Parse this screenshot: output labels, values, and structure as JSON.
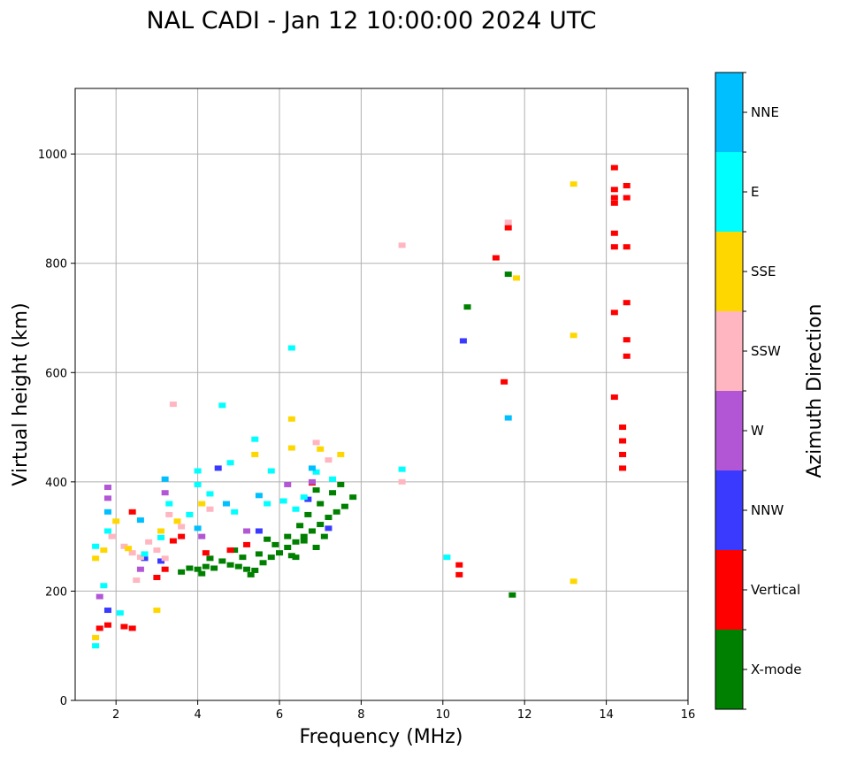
{
  "chart_data": {
    "type": "scatter",
    "title": "NAL CADI - Jan 12 10:00:00 2024 UTC",
    "xlabel": "Frequency (MHz)",
    "ylabel": "Virtual height (km)",
    "xlim": [
      1,
      16
    ],
    "ylim": [
      0,
      1120
    ],
    "xticks": [
      2,
      4,
      6,
      8,
      10,
      12,
      14,
      16
    ],
    "yticks": [
      0,
      200,
      400,
      600,
      800,
      1000
    ],
    "grid": true,
    "colorbar": {
      "label": "Azimuth Direction",
      "categories": [
        {
          "name": "X-mode",
          "color": "#008000"
        },
        {
          "name": "Vertical",
          "color": "#ff0000"
        },
        {
          "name": "NNW",
          "color": "#3a3aff"
        },
        {
          "name": "W",
          "color": "#b256d6"
        },
        {
          "name": "SSW",
          "color": "#ffb6c1"
        },
        {
          "name": "SSE",
          "color": "#ffd700"
        },
        {
          "name": "E",
          "color": "#00ffff"
        },
        {
          "name": "NNE",
          "color": "#00bfff"
        }
      ]
    },
    "series": [
      {
        "name": "X-mode",
        "points": [
          [
            3.6,
            235
          ],
          [
            3.8,
            242
          ],
          [
            4.0,
            240
          ],
          [
            4.2,
            245
          ],
          [
            4.4,
            242
          ],
          [
            4.6,
            255
          ],
          [
            4.8,
            248
          ],
          [
            5.0,
            245
          ],
          [
            5.2,
            240
          ],
          [
            5.4,
            238
          ],
          [
            5.6,
            252
          ],
          [
            5.8,
            262
          ],
          [
            6.0,
            270
          ],
          [
            6.2,
            280
          ],
          [
            6.4,
            290
          ],
          [
            6.6,
            300
          ],
          [
            6.8,
            310
          ],
          [
            7.0,
            322
          ],
          [
            7.2,
            335
          ],
          [
            7.4,
            345
          ],
          [
            7.6,
            355
          ],
          [
            7.8,
            372
          ],
          [
            6.9,
            280
          ],
          [
            7.1,
            300
          ],
          [
            6.5,
            320
          ],
          [
            6.7,
            340
          ],
          [
            6.3,
            265
          ],
          [
            5.9,
            285
          ],
          [
            5.5,
            268
          ],
          [
            5.1,
            262
          ],
          [
            4.9,
            275
          ],
          [
            4.3,
            260
          ],
          [
            6.4,
            262
          ],
          [
            7.0,
            360
          ],
          [
            7.3,
            380
          ],
          [
            7.5,
            395
          ],
          [
            6.9,
            385
          ],
          [
            6.6,
            292
          ],
          [
            6.2,
            300
          ],
          [
            5.7,
            295
          ],
          [
            4.1,
            232
          ],
          [
            5.3,
            230
          ],
          [
            10.6,
            720
          ],
          [
            11.6,
            780
          ],
          [
            11.7,
            193
          ]
        ]
      },
      {
        "name": "Vertical",
        "points": [
          [
            1.6,
            132
          ],
          [
            1.8,
            138
          ],
          [
            2.2,
            135
          ],
          [
            2.4,
            132
          ],
          [
            3.0,
            225
          ],
          [
            3.2,
            240
          ],
          [
            3.4,
            292
          ],
          [
            3.6,
            300
          ],
          [
            4.2,
            270
          ],
          [
            4.8,
            275
          ],
          [
            5.2,
            285
          ],
          [
            2.4,
            345
          ],
          [
            6.8,
            398
          ],
          [
            10.4,
            248
          ],
          [
            10.4,
            230
          ],
          [
            11.5,
            583
          ],
          [
            11.6,
            865
          ],
          [
            11.3,
            810
          ],
          [
            14.2,
            555
          ],
          [
            14.2,
            710
          ],
          [
            14.2,
            830
          ],
          [
            14.2,
            855
          ],
          [
            14.2,
            975
          ],
          [
            14.2,
            935
          ],
          [
            14.2,
            920
          ],
          [
            14.2,
            910
          ],
          [
            14.4,
            425
          ],
          [
            14.4,
            450
          ],
          [
            14.4,
            475
          ],
          [
            14.4,
            500
          ],
          [
            14.5,
            630
          ],
          [
            14.5,
            660
          ],
          [
            14.5,
            830
          ],
          [
            14.5,
            920
          ],
          [
            14.5,
            942
          ],
          [
            14.5,
            728
          ]
        ]
      },
      {
        "name": "NNW",
        "points": [
          [
            1.8,
            165
          ],
          [
            2.7,
            260
          ],
          [
            3.1,
            255
          ],
          [
            4.5,
            425
          ],
          [
            5.5,
            310
          ],
          [
            6.7,
            368
          ],
          [
            7.2,
            315
          ],
          [
            10.5,
            658
          ]
        ]
      },
      {
        "name": "W",
        "points": [
          [
            1.8,
            370
          ],
          [
            1.8,
            390
          ],
          [
            1.6,
            190
          ],
          [
            2.6,
            240
          ],
          [
            3.2,
            380
          ],
          [
            4.1,
            300
          ],
          [
            5.2,
            310
          ],
          [
            6.2,
            395
          ],
          [
            6.8,
            400
          ]
        ]
      },
      {
        "name": "SSW",
        "points": [
          [
            1.9,
            300
          ],
          [
            2.2,
            282
          ],
          [
            2.4,
            270
          ],
          [
            2.6,
            262
          ],
          [
            2.8,
            290
          ],
          [
            3.0,
            275
          ],
          [
            3.2,
            260
          ],
          [
            2.5,
            220
          ],
          [
            3.3,
            340
          ],
          [
            3.6,
            318
          ],
          [
            4.3,
            350
          ],
          [
            6.9,
            472
          ],
          [
            7.2,
            440
          ],
          [
            9.0,
            400
          ],
          [
            11.6,
            875
          ],
          [
            9.0,
            833
          ],
          [
            3.4,
            542
          ]
        ]
      },
      {
        "name": "SSE",
        "points": [
          [
            1.5,
            260
          ],
          [
            1.7,
            275
          ],
          [
            2.0,
            328
          ],
          [
            2.3,
            278
          ],
          [
            3.1,
            310
          ],
          [
            3.5,
            328
          ],
          [
            4.1,
            360
          ],
          [
            5.4,
            450
          ],
          [
            6.3,
            462
          ],
          [
            6.3,
            515
          ],
          [
            7.0,
            460
          ],
          [
            7.5,
            450
          ],
          [
            11.8,
            773
          ],
          [
            13.2,
            668
          ],
          [
            13.2,
            945
          ],
          [
            13.2,
            218
          ],
          [
            1.5,
            115
          ],
          [
            3.0,
            165
          ]
        ]
      },
      {
        "name": "E",
        "points": [
          [
            1.5,
            282
          ],
          [
            1.8,
            310
          ],
          [
            1.7,
            210
          ],
          [
            2.1,
            160
          ],
          [
            2.7,
            268
          ],
          [
            3.1,
            298
          ],
          [
            3.3,
            360
          ],
          [
            3.8,
            340
          ],
          [
            4.0,
            395
          ],
          [
            4.3,
            378
          ],
          [
            4.9,
            345
          ],
          [
            5.4,
            478
          ],
          [
            5.8,
            420
          ],
          [
            6.1,
            365
          ],
          [
            6.4,
            350
          ],
          [
            6.6,
            372
          ],
          [
            6.9,
            418
          ],
          [
            7.3,
            405
          ],
          [
            10.1,
            262
          ],
          [
            9.0,
            423
          ],
          [
            6.3,
            645
          ],
          [
            4.6,
            540
          ],
          [
            4.0,
            420
          ],
          [
            1.5,
            100
          ],
          [
            5.7,
            360
          ],
          [
            4.8,
            435
          ]
        ]
      },
      {
        "name": "NNE",
        "points": [
          [
            1.8,
            345
          ],
          [
            2.6,
            330
          ],
          [
            3.2,
            405
          ],
          [
            4.0,
            315
          ],
          [
            4.7,
            360
          ],
          [
            5.5,
            375
          ],
          [
            6.8,
            425
          ],
          [
            11.6,
            517
          ]
        ]
      }
    ]
  },
  "colorbar_label": "Azimuth Direction"
}
